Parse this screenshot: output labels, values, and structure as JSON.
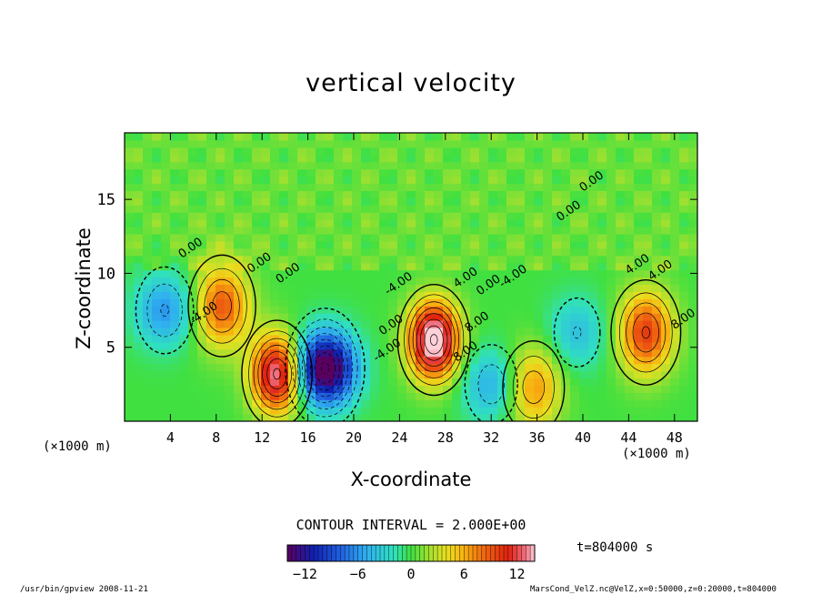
{
  "chart_data": {
    "type": "heatmap",
    "title": "vertical velocity",
    "xlabel": "X-coordinate",
    "ylabel": "Z-coordinate",
    "x_unit_left": "(×1000 m)",
    "x_unit_right": "(×1000 m)",
    "xlim": [
      0,
      50
    ],
    "ylim": [
      0,
      19.5
    ],
    "x_ticks": [
      4,
      8,
      12,
      16,
      20,
      24,
      28,
      32,
      36,
      40,
      44,
      48
    ],
    "y_ticks": [
      5,
      10,
      15
    ],
    "contour_interval_text": "CONTOUR INTERVAL = 2.000E+00",
    "colorbar": {
      "min": -14,
      "max": 14,
      "ticks": [
        -12,
        -6,
        0,
        6,
        12
      ]
    },
    "contour_labels": [
      "0.00",
      "0.00",
      "0.00",
      "0.00",
      "0.00",
      "-4.00",
      "4.00",
      "4.00",
      "8.00",
      "0.00",
      "-4.00",
      "0.00",
      "4.00",
      "8.00",
      "-4.00",
      "-4.00",
      "8.00"
    ],
    "features": [
      {
        "kind": "updraft",
        "x": 8.5,
        "z": 7.8,
        "peak": 9
      },
      {
        "kind": "updraft",
        "x": 13.3,
        "z": 3.2,
        "peak": 14
      },
      {
        "kind": "downdraft",
        "x": 17.5,
        "z": 3.6,
        "peak": -16
      },
      {
        "kind": "updraft",
        "x": 27.0,
        "z": 5.5,
        "peak": 16
      },
      {
        "kind": "updraft",
        "x": 35.7,
        "z": 2.3,
        "peak": 7
      },
      {
        "kind": "updraft",
        "x": 45.5,
        "z": 6.0,
        "peak": 10
      },
      {
        "kind": "downdraft",
        "x": 3.5,
        "z": 7.5,
        "peak": -6
      },
      {
        "kind": "downdraft",
        "x": 32.0,
        "z": 2.5,
        "peak": -5
      },
      {
        "kind": "downdraft",
        "x": 39.5,
        "z": 6.0,
        "peak": -4
      }
    ]
  },
  "time_label": "t=804000 s",
  "footer_left": "/usr/bin/gpview   2008-11-21",
  "footer_right": "MarsCond_VelZ.nc@VelZ,x=0:50000,z=0:20000,t=804000"
}
